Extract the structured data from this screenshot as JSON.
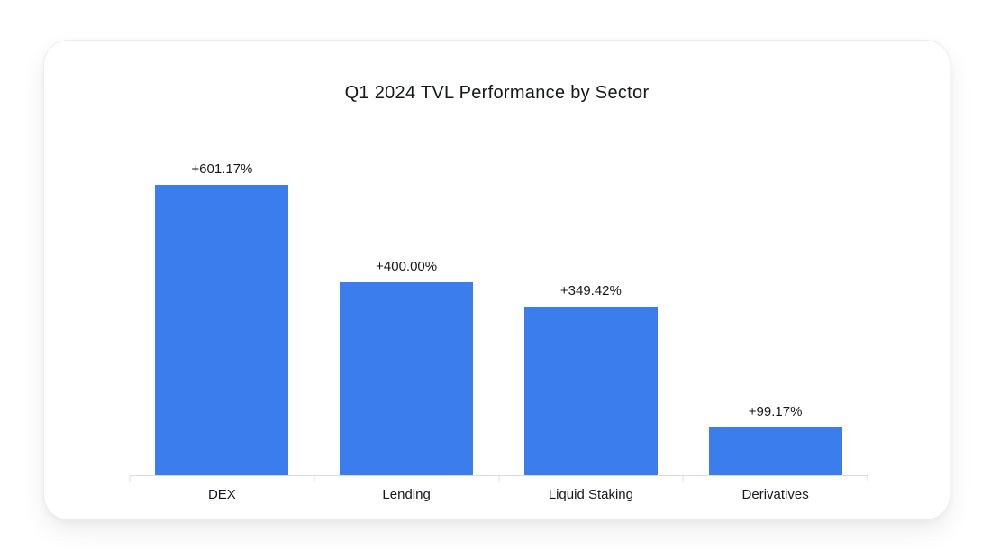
{
  "title": "Q1 2024 TVL Performance by Sector",
  "colors": {
    "bar": "#3b7ded",
    "axis": "#dcdcdc",
    "text": "#17181c",
    "card_background": "#ffffff",
    "card_border": "#ececec"
  },
  "chart_data": {
    "type": "bar",
    "title": "Q1 2024 TVL Performance by Sector",
    "categories": [
      "DEX",
      "Lending",
      "Liquid Staking",
      "Derivatives"
    ],
    "values": [
      601.17,
      400.0,
      349.42,
      99.17
    ],
    "value_labels": [
      "+601.17%",
      "+400.00%",
      "+349.42%",
      "+99.17%"
    ],
    "xlabel": "",
    "ylabel": "",
    "ylim": [
      0,
      700
    ],
    "grid": false,
    "legend": false,
    "bar_color": "#3b7ded",
    "axis_color": "#dcdcdc",
    "label_color": "#17181c"
  }
}
